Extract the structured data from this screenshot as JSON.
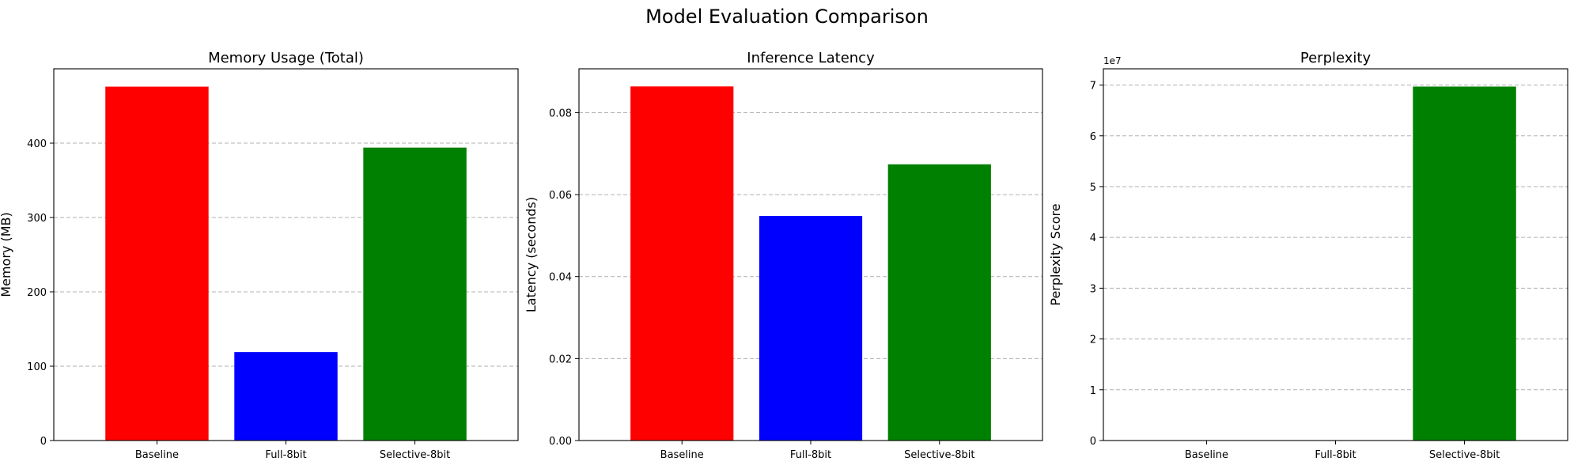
{
  "figure": {
    "title": "Model Evaluation Comparison"
  },
  "chart_data": [
    {
      "type": "bar",
      "title": "Memory Usage (Total)",
      "xlabel": "",
      "ylabel": "Memory (MB)",
      "categories": [
        "Baseline",
        "Full-8bit",
        "Selective-8bit"
      ],
      "values": [
        476,
        119,
        394
      ],
      "colors": [
        "#ff0000",
        "#0000ff",
        "#008000"
      ],
      "ylim": [
        0,
        500
      ],
      "yticks": [
        0,
        100,
        200,
        300,
        400
      ],
      "ytick_labels": [
        "0",
        "100",
        "200",
        "300",
        "400"
      ],
      "offset_text": "",
      "grid": "y-dashed"
    },
    {
      "type": "bar",
      "title": "Inference Latency",
      "xlabel": "",
      "ylabel": "Latency (seconds)",
      "categories": [
        "Baseline",
        "Full-8bit",
        "Selective-8bit"
      ],
      "values": [
        0.0864,
        0.0548,
        0.0674
      ],
      "colors": [
        "#ff0000",
        "#0000ff",
        "#008000"
      ],
      "ylim": [
        0,
        0.0907
      ],
      "yticks": [
        0,
        0.02,
        0.04,
        0.06,
        0.08
      ],
      "ytick_labels": [
        "0.00",
        "0.02",
        "0.04",
        "0.06",
        "0.08"
      ],
      "offset_text": "",
      "grid": "y-dashed"
    },
    {
      "type": "bar",
      "title": "Perplexity",
      "xlabel": "",
      "ylabel": "Perplexity Score",
      "categories": [
        "Baseline",
        "Full-8bit",
        "Selective-8bit"
      ],
      "values": [
        0,
        0,
        69700000
      ],
      "colors": [
        "#ff0000",
        "#0000ff",
        "#008000"
      ],
      "ylim": [
        0,
        73200000
      ],
      "yticks": [
        0,
        10000000,
        20000000,
        30000000,
        40000000,
        50000000,
        60000000,
        70000000
      ],
      "ytick_labels": [
        "0",
        "1",
        "2",
        "3",
        "4",
        "5",
        "6",
        "7"
      ],
      "offset_text": "1e7",
      "grid": "y-dashed"
    }
  ]
}
